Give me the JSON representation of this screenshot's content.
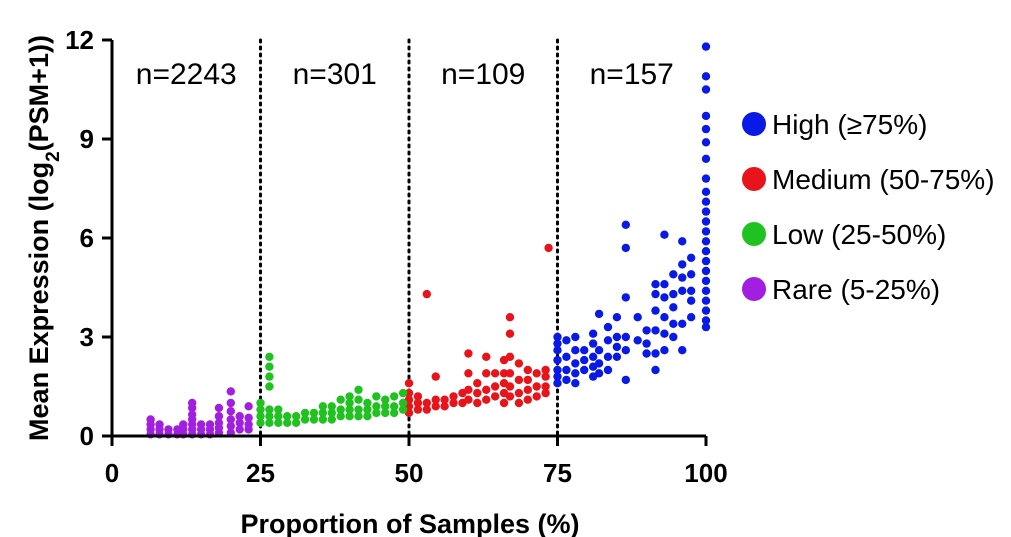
{
  "chart_data": {
    "type": "scatter",
    "xlabel": "Proportion of Samples (%)",
    "ylabel": {
      "prefix": "Mean Expression (log",
      "subscript": "2",
      "suffix": "(PSM+1))"
    },
    "xlim": [
      0,
      100
    ],
    "ylim": [
      0,
      12
    ],
    "xticks": [
      0,
      25,
      50,
      75,
      100
    ],
    "yticks": [
      0,
      3,
      6,
      9,
      12
    ],
    "dividers": [
      25,
      50,
      75
    ],
    "grid": false,
    "legend_placement": "right",
    "count_labels": [
      {
        "text": "n=2243",
        "x": 12.5
      },
      {
        "text": "n=301",
        "x": 37.5
      },
      {
        "text": "n=109",
        "x": 62.5
      },
      {
        "text": "n=157",
        "x": 87.5
      }
    ],
    "series": [
      {
        "name": "High (≥75%)",
        "color": "#0a1ae6",
        "points": [
          [
            75,
            1.6
          ],
          [
            75,
            1.8
          ],
          [
            75,
            2.0
          ],
          [
            75,
            2.3
          ],
          [
            75,
            2.6
          ],
          [
            75,
            2.8
          ],
          [
            75,
            3.0
          ],
          [
            76.5,
            1.7
          ],
          [
            76.5,
            2.0
          ],
          [
            76.5,
            2.4
          ],
          [
            76.5,
            2.9
          ],
          [
            78,
            1.6
          ],
          [
            78,
            1.9
          ],
          [
            78,
            2.2
          ],
          [
            78,
            2.6
          ],
          [
            78,
            3.0
          ],
          [
            79.5,
            2.0
          ],
          [
            79.5,
            2.3
          ],
          [
            79.5,
            2.6
          ],
          [
            81,
            1.8
          ],
          [
            81,
            2.1
          ],
          [
            81,
            2.4
          ],
          [
            81,
            2.8
          ],
          [
            81,
            3.1
          ],
          [
            82,
            1.9
          ],
          [
            82,
            2.2
          ],
          [
            82,
            2.6
          ],
          [
            82,
            3.7
          ],
          [
            83.5,
            2.0
          ],
          [
            83.5,
            2.4
          ],
          [
            83.5,
            2.9
          ],
          [
            83.5,
            3.3
          ],
          [
            85,
            2.4
          ],
          [
            85,
            2.7
          ],
          [
            85,
            3.0
          ],
          [
            85,
            3.6
          ],
          [
            86.5,
            1.7
          ],
          [
            86.5,
            2.6
          ],
          [
            86.5,
            3.0
          ],
          [
            86.5,
            4.2
          ],
          [
            86.5,
            5.7
          ],
          [
            86.5,
            6.4
          ],
          [
            88.5,
            2.9
          ],
          [
            88.5,
            3.6
          ],
          [
            90,
            2.5
          ],
          [
            90,
            2.8
          ],
          [
            90,
            3.2
          ],
          [
            91.5,
            2.0
          ],
          [
            91.5,
            2.5
          ],
          [
            91.5,
            3.2
          ],
          [
            91.5,
            3.8
          ],
          [
            91.5,
            4.3
          ],
          [
            91.5,
            4.6
          ],
          [
            93,
            2.6
          ],
          [
            93,
            3.1
          ],
          [
            93,
            3.6
          ],
          [
            93,
            4.2
          ],
          [
            93,
            4.6
          ],
          [
            93,
            6.1
          ],
          [
            94.5,
            3.0
          ],
          [
            94.5,
            3.4
          ],
          [
            94.5,
            3.9
          ],
          [
            94.5,
            4.3
          ],
          [
            94.5,
            4.9
          ],
          [
            96,
            2.6
          ],
          [
            96,
            3.4
          ],
          [
            96,
            4.4
          ],
          [
            96,
            4.8
          ],
          [
            96,
            5.2
          ],
          [
            96,
            5.9
          ],
          [
            97.5,
            3.6
          ],
          [
            97.5,
            4.1
          ],
          [
            97.5,
            4.4
          ],
          [
            97.5,
            4.9
          ],
          [
            97.5,
            5.4
          ],
          [
            100,
            3.3
          ],
          [
            100,
            3.5
          ],
          [
            100,
            3.8
          ],
          [
            100,
            4.1
          ],
          [
            100,
            4.4
          ],
          [
            100,
            4.7
          ],
          [
            100,
            5.0
          ],
          [
            100,
            5.3
          ],
          [
            100,
            5.6
          ],
          [
            100,
            5.9
          ],
          [
            100,
            6.2
          ],
          [
            100,
            6.5
          ],
          [
            100,
            6.8
          ],
          [
            100,
            7.1
          ],
          [
            100,
            7.4
          ],
          [
            100,
            7.8
          ],
          [
            100,
            8.4
          ],
          [
            100,
            8.9
          ],
          [
            100,
            9.3
          ],
          [
            100,
            9.7
          ],
          [
            100,
            10.5
          ],
          [
            100,
            10.9
          ],
          [
            100,
            11.8
          ]
        ]
      },
      {
        "name": "Medium (50-75%)",
        "color": "#e8141a",
        "points": [
          [
            50,
            0.7
          ],
          [
            50,
            0.9
          ],
          [
            50,
            1.1
          ],
          [
            50,
            1.3
          ],
          [
            50,
            1.6
          ],
          [
            51.5,
            0.8
          ],
          [
            51.5,
            1.0
          ],
          [
            51.5,
            1.2
          ],
          [
            53,
            0.8
          ],
          [
            53,
            1.0
          ],
          [
            53,
            4.3
          ],
          [
            54.5,
            0.9
          ],
          [
            54.5,
            1.1
          ],
          [
            54.5,
            1.8
          ],
          [
            56,
            0.9
          ],
          [
            56,
            1.1
          ],
          [
            57.5,
            1.0
          ],
          [
            57.5,
            1.2
          ],
          [
            59,
            1.0
          ],
          [
            59,
            1.3
          ],
          [
            60,
            1.1
          ],
          [
            60,
            1.4
          ],
          [
            60,
            1.9
          ],
          [
            60,
            2.5
          ],
          [
            61.5,
            1.0
          ],
          [
            61.5,
            1.3
          ],
          [
            61.5,
            1.6
          ],
          [
            63,
            1.1
          ],
          [
            63,
            1.4
          ],
          [
            63,
            1.9
          ],
          [
            63,
            2.4
          ],
          [
            64.5,
            1.2
          ],
          [
            64.5,
            1.5
          ],
          [
            64.5,
            1.9
          ],
          [
            66,
            1.0
          ],
          [
            66,
            1.3
          ],
          [
            66,
            1.6
          ],
          [
            66,
            1.9
          ],
          [
            66,
            2.3
          ],
          [
            67,
            1.2
          ],
          [
            67,
            1.5
          ],
          [
            67,
            1.9
          ],
          [
            67,
            2.4
          ],
          [
            67,
            3.1
          ],
          [
            67,
            3.6
          ],
          [
            68.5,
            1.0
          ],
          [
            68.5,
            1.3
          ],
          [
            68.5,
            1.7
          ],
          [
            68.5,
            2.2
          ],
          [
            70,
            1.1
          ],
          [
            70,
            1.4
          ],
          [
            70,
            1.7
          ],
          [
            70,
            2.0
          ],
          [
            71.5,
            1.2
          ],
          [
            71.5,
            1.5
          ],
          [
            71.5,
            1.9
          ],
          [
            73,
            1.3
          ],
          [
            73,
            1.5
          ],
          [
            73,
            1.8
          ],
          [
            73,
            2.0
          ],
          [
            73.5,
            5.7
          ]
        ]
      },
      {
        "name": "Low (25-50%)",
        "color": "#1fc21f",
        "points": [
          [
            25,
            0.4
          ],
          [
            25,
            0.6
          ],
          [
            25,
            0.8
          ],
          [
            25,
            1.0
          ],
          [
            26.5,
            0.4
          ],
          [
            26.5,
            0.6
          ],
          [
            26.5,
            0.8
          ],
          [
            26.5,
            1.5
          ],
          [
            26.5,
            1.8
          ],
          [
            26.5,
            2.1
          ],
          [
            26.5,
            2.4
          ],
          [
            28,
            0.4
          ],
          [
            28,
            0.6
          ],
          [
            28,
            0.8
          ],
          [
            29.5,
            0.4
          ],
          [
            29.5,
            0.6
          ],
          [
            31,
            0.4
          ],
          [
            31,
            0.6
          ],
          [
            32.5,
            0.5
          ],
          [
            32.5,
            0.7
          ],
          [
            34,
            0.5
          ],
          [
            34,
            0.7
          ],
          [
            35.5,
            0.5
          ],
          [
            35.5,
            0.7
          ],
          [
            35.5,
            0.9
          ],
          [
            37,
            0.5
          ],
          [
            37,
            0.7
          ],
          [
            37,
            0.9
          ],
          [
            38.5,
            0.6
          ],
          [
            38.5,
            0.8
          ],
          [
            38.5,
            1.1
          ],
          [
            40,
            0.6
          ],
          [
            40,
            0.8
          ],
          [
            40,
            1.0
          ],
          [
            40,
            1.2
          ],
          [
            41.5,
            0.6
          ],
          [
            41.5,
            0.8
          ],
          [
            41.5,
            1.1
          ],
          [
            41.5,
            1.4
          ],
          [
            43,
            0.6
          ],
          [
            43,
            0.8
          ],
          [
            43,
            1.0
          ],
          [
            44.5,
            0.7
          ],
          [
            44.5,
            0.9
          ],
          [
            44.5,
            1.2
          ],
          [
            46,
            0.7
          ],
          [
            46,
            0.9
          ],
          [
            46,
            1.1
          ],
          [
            47.5,
            0.7
          ],
          [
            47.5,
            0.9
          ],
          [
            47.5,
            1.2
          ],
          [
            49,
            0.8
          ],
          [
            49,
            1.0
          ],
          [
            49,
            1.3
          ]
        ]
      },
      {
        "name": "Rare (5-25%)",
        "color": "#a21ee0",
        "points": [
          [
            6.5,
            0.05
          ],
          [
            6.5,
            0.2
          ],
          [
            6.5,
            0.35
          ],
          [
            6.5,
            0.5
          ],
          [
            8,
            0.05
          ],
          [
            8,
            0.2
          ],
          [
            8,
            0.35
          ],
          [
            9.5,
            0.05
          ],
          [
            9.5,
            0.2
          ],
          [
            11,
            0.05
          ],
          [
            11,
            0.2
          ],
          [
            12,
            0.05
          ],
          [
            12,
            0.2
          ],
          [
            12,
            0.35
          ],
          [
            13.5,
            0.05
          ],
          [
            13.5,
            0.2
          ],
          [
            13.5,
            0.35
          ],
          [
            13.5,
            0.5
          ],
          [
            13.5,
            0.65
          ],
          [
            13.5,
            0.85
          ],
          [
            13.5,
            1.0
          ],
          [
            15,
            0.05
          ],
          [
            15,
            0.2
          ],
          [
            15,
            0.35
          ],
          [
            16.5,
            0.05
          ],
          [
            16.5,
            0.2
          ],
          [
            16.5,
            0.35
          ],
          [
            18,
            0.1
          ],
          [
            18,
            0.25
          ],
          [
            18,
            0.4
          ],
          [
            18,
            0.6
          ],
          [
            18,
            0.85
          ],
          [
            20,
            0.1
          ],
          [
            20,
            0.3
          ],
          [
            20,
            0.5
          ],
          [
            20,
            0.75
          ],
          [
            20,
            1.0
          ],
          [
            20,
            1.35
          ],
          [
            21.5,
            0.2
          ],
          [
            21.5,
            0.4
          ],
          [
            21.5,
            0.6
          ],
          [
            23,
            0.2
          ],
          [
            23,
            0.35
          ],
          [
            23,
            0.55
          ],
          [
            23,
            0.9
          ]
        ]
      }
    ]
  }
}
